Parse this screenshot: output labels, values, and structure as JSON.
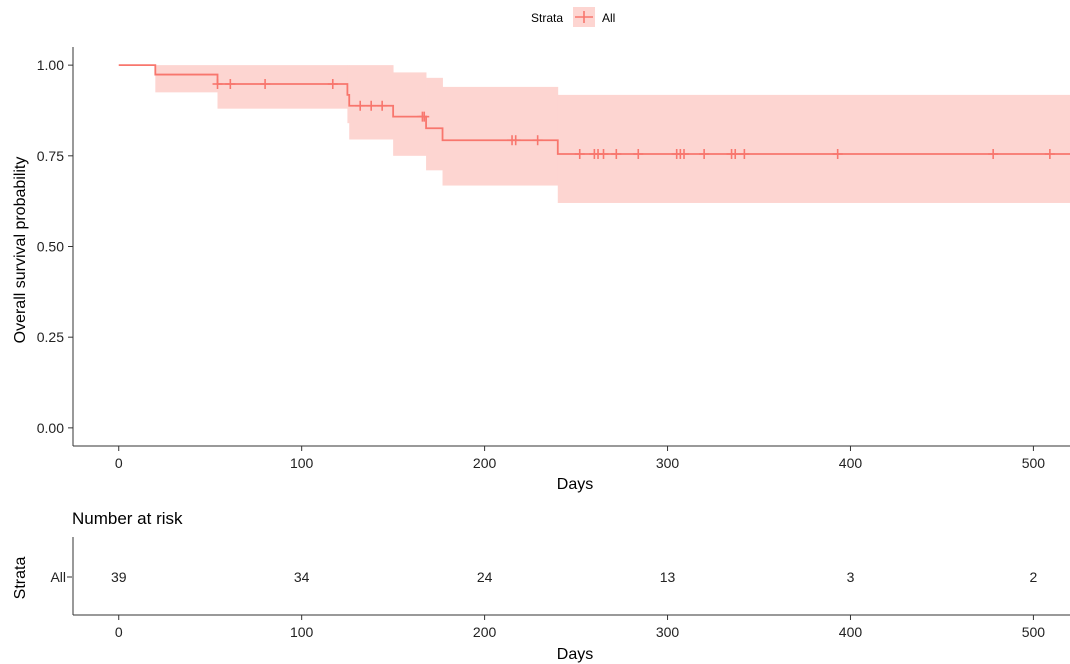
{
  "legend": {
    "title": "Strata",
    "label": "All"
  },
  "colors": {
    "line": "#F8766D",
    "band": "#FDD5D1",
    "axis": "#333333"
  },
  "chart_data": {
    "type": "line",
    "subtype": "kaplan-meier",
    "xlabel": "Days",
    "ylabel": "Overall survival probability",
    "xlim": [
      -25,
      520
    ],
    "ylim": [
      -0.05,
      1.05
    ],
    "xticks": [
      0,
      100,
      200,
      300,
      400,
      500
    ],
    "yticks": [
      0.0,
      0.25,
      0.5,
      0.75,
      1.0
    ],
    "ytick_labels": [
      "0.00",
      "0.25",
      "0.50",
      "0.75",
      "1.00"
    ],
    "grid": false,
    "legend_position": "top",
    "series": [
      {
        "name": "All",
        "steps": [
          {
            "x": 0,
            "y": 1.0,
            "lower": 1.0,
            "upper": 1.0
          },
          {
            "x": 20,
            "y": 0.974,
            "lower": 0.925,
            "upper": 1.0
          },
          {
            "x": 54,
            "y": 0.948,
            "lower": 0.88,
            "upper": 1.0
          },
          {
            "x": 125,
            "y": 0.918,
            "lower": 0.84,
            "upper": 1.0
          },
          {
            "x": 126,
            "y": 0.888,
            "lower": 0.795,
            "upper": 1.0
          },
          {
            "x": 150,
            "y": 0.858,
            "lower": 0.75,
            "upper": 0.98
          },
          {
            "x": 168,
            "y": 0.826,
            "lower": 0.71,
            "upper": 0.965
          },
          {
            "x": 177,
            "y": 0.793,
            "lower": 0.668,
            "upper": 0.94
          },
          {
            "x": 240,
            "y": 0.755,
            "lower": 0.62,
            "upper": 0.918
          },
          {
            "x": 520,
            "y": 0.755,
            "lower": 0.62,
            "upper": 0.918
          }
        ],
        "censor_times": [
          54,
          61,
          80,
          117,
          132,
          138,
          144,
          166,
          167,
          215,
          217,
          229,
          252,
          260,
          262,
          265,
          272,
          284,
          305,
          307,
          309,
          320,
          335,
          337,
          342,
          393,
          478,
          509
        ]
      }
    ],
    "risk_table": {
      "title": "Number at risk",
      "ylabel": "Strata",
      "xlabel": "Days",
      "strata_label": "All",
      "times": [
        0,
        100,
        200,
        300,
        400,
        500
      ],
      "counts": [
        "39",
        "34",
        "24",
        "13",
        "3",
        "2"
      ]
    }
  }
}
